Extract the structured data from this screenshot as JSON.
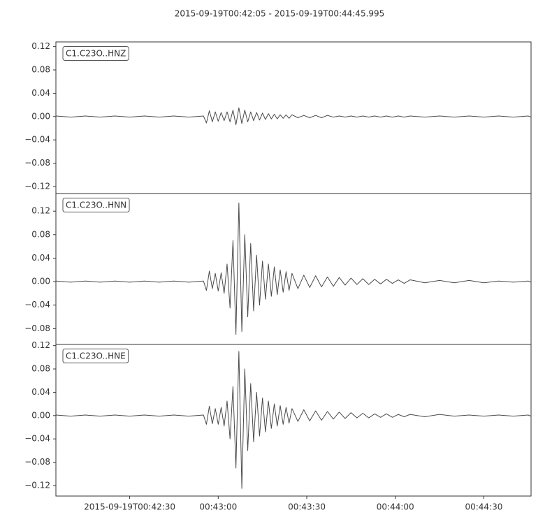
{
  "chart_data": [
    {
      "type": "line",
      "title": "2015-09-19T00:42:05  -  2015-09-19T00:44:45.995",
      "x": [
        0,
        5,
        10,
        15,
        20,
        25,
        30,
        35,
        40,
        45,
        50,
        51,
        52,
        53,
        54,
        55,
        56,
        57,
        58,
        59,
        60,
        61,
        62,
        63,
        64,
        65,
        66,
        67,
        68,
        69,
        70,
        71,
        72,
        73,
        74,
        75,
        76,
        77,
        78,
        79,
        80,
        82,
        84,
        86,
        88,
        90,
        92,
        94,
        96,
        98,
        100,
        102,
        104,
        106,
        108,
        110,
        112,
        114,
        116,
        118,
        120,
        125,
        130,
        135,
        140,
        145,
        150,
        155,
        160,
        160.995
      ],
      "series": [
        {
          "name": "C1.C23O..HNZ",
          "color": "#4a4a4a",
          "values": [
            0.001,
            -0.001,
            0.001,
            -0.001,
            0.001,
            -0.001,
            0.001,
            -0.001,
            0.001,
            -0.001,
            0.001,
            -0.011,
            0.01,
            -0.009,
            0.008,
            -0.008,
            0.007,
            -0.007,
            0.008,
            -0.009,
            0.011,
            -0.014,
            0.015,
            -0.012,
            0.011,
            -0.009,
            0.008,
            -0.007,
            0.007,
            -0.006,
            0.006,
            -0.005,
            0.005,
            -0.004,
            0.004,
            -0.004,
            0.003,
            -0.003,
            0.003,
            -0.003,
            0.003,
            -0.002,
            0.002,
            -0.002,
            0.002,
            -0.002,
            0.002,
            -0.001,
            0.001,
            -0.001,
            0.001,
            -0.001,
            0.001,
            -0.001,
            0.001,
            -0.001,
            0.001,
            -0.001,
            0.001,
            -0.001,
            0.001,
            -0.001,
            0.001,
            -0.001,
            0.001,
            -0.001,
            0.001,
            -0.001,
            0.001,
            -0.001
          ]
        }
      ],
      "xlim": [
        0,
        160.995
      ],
      "ylim": [
        -0.132,
        0.128
      ],
      "yticks": [
        0.12,
        0.08,
        0.04,
        {
          "value": 0,
          "label": "0.00"
        },
        {
          "value": -0.04,
          "label": "−0.04"
        },
        {
          "value": -0.08,
          "label": "−0.08"
        },
        {
          "value": -0.12,
          "label": "−0.12"
        }
      ]
    },
    {
      "type": "line",
      "x": [
        0,
        5,
        10,
        15,
        20,
        25,
        30,
        35,
        40,
        45,
        50,
        51,
        52,
        53,
        54,
        55,
        56,
        57,
        58,
        59,
        60,
        61,
        62,
        63,
        64,
        65,
        66,
        67,
        68,
        69,
        70,
        71,
        72,
        73,
        74,
        75,
        76,
        77,
        78,
        79,
        80,
        82,
        84,
        86,
        88,
        90,
        92,
        94,
        96,
        98,
        100,
        102,
        104,
        106,
        108,
        110,
        112,
        114,
        116,
        118,
        120,
        125,
        130,
        135,
        140,
        145,
        150,
        155,
        160,
        160.995
      ],
      "series": [
        {
          "name": "C1.C23O..HNN",
          "color": "#4a4a4a",
          "values": [
            0.001,
            -0.001,
            0.001,
            -0.001,
            0.001,
            -0.001,
            0.001,
            -0.001,
            0.001,
            -0.001,
            0.001,
            -0.015,
            0.018,
            -0.012,
            0.014,
            -0.016,
            0.015,
            -0.02,
            0.03,
            -0.045,
            0.07,
            -0.09,
            0.134,
            -0.085,
            0.08,
            -0.06,
            0.065,
            -0.05,
            0.045,
            -0.04,
            0.035,
            -0.03,
            0.03,
            -0.025,
            0.025,
            -0.022,
            0.02,
            -0.018,
            0.017,
            -0.015,
            0.014,
            -0.012,
            0.011,
            -0.01,
            0.01,
            -0.009,
            0.008,
            -0.008,
            0.007,
            -0.006,
            0.006,
            -0.005,
            0.005,
            -0.005,
            0.004,
            -0.004,
            0.004,
            -0.003,
            0.003,
            -0.003,
            0.003,
            -0.002,
            0.002,
            -0.002,
            0.002,
            -0.002,
            0.001,
            -0.001,
            0.001,
            -0.001
          ]
        }
      ],
      "xlim": [
        0,
        160.995
      ],
      "ylim": [
        -0.107,
        0.15
      ],
      "yticks": [
        0.12,
        0.08,
        0.04,
        {
          "value": 0,
          "label": "0.00"
        },
        {
          "value": -0.04,
          "label": "−0.04"
        },
        {
          "value": -0.08,
          "label": "−0.08"
        }
      ]
    },
    {
      "type": "line",
      "x": [
        0,
        5,
        10,
        15,
        20,
        25,
        30,
        35,
        40,
        45,
        50,
        51,
        52,
        53,
        54,
        55,
        56,
        57,
        58,
        59,
        60,
        61,
        62,
        63,
        64,
        65,
        66,
        67,
        68,
        69,
        70,
        71,
        72,
        73,
        74,
        75,
        76,
        77,
        78,
        79,
        80,
        82,
        84,
        86,
        88,
        90,
        92,
        94,
        96,
        98,
        100,
        102,
        104,
        106,
        108,
        110,
        112,
        114,
        116,
        118,
        120,
        125,
        130,
        135,
        140,
        145,
        150,
        155,
        160,
        160.995
      ],
      "series": [
        {
          "name": "C1.C23O..HNE",
          "color": "#4a4a4a",
          "values": [
            0.001,
            -0.001,
            0.001,
            -0.001,
            0.001,
            -0.001,
            0.001,
            -0.001,
            0.001,
            -0.001,
            0.001,
            -0.015,
            0.016,
            -0.014,
            0.012,
            -0.015,
            0.014,
            -0.018,
            0.025,
            -0.04,
            0.05,
            -0.09,
            0.11,
            -0.125,
            0.08,
            -0.06,
            0.055,
            -0.045,
            0.04,
            -0.035,
            0.03,
            -0.028,
            0.025,
            -0.022,
            0.02,
            -0.018,
            0.017,
            -0.015,
            0.014,
            -0.013,
            0.012,
            -0.01,
            0.01,
            -0.009,
            0.008,
            -0.008,
            0.007,
            -0.006,
            0.006,
            -0.005,
            0.005,
            -0.004,
            0.004,
            -0.004,
            0.003,
            -0.003,
            0.003,
            -0.003,
            0.002,
            -0.002,
            0.002,
            -0.002,
            0.002,
            -0.001,
            0.001,
            -0.001,
            0.001,
            -0.001,
            0.001,
            -0.001
          ]
        }
      ],
      "xlim": [
        0,
        160.995
      ],
      "ylim": [
        -0.138,
        0.122
      ],
      "yticks": [
        0.12,
        0.08,
        0.04,
        {
          "value": 0,
          "label": "0.00"
        },
        {
          "value": -0.04,
          "label": "−0.04"
        },
        {
          "value": -0.08,
          "label": "−0.08"
        },
        {
          "value": -0.12,
          "label": "−0.12"
        }
      ],
      "xticks": [
        {
          "value": 25,
          "label": "2015-09-19T00:42:30"
        },
        {
          "value": 55,
          "label": "00:43:00"
        },
        {
          "value": 85,
          "label": "00:43:30"
        },
        {
          "value": 115,
          "label": "00:44:00"
        },
        {
          "value": 145,
          "label": "00:44:30"
        }
      ]
    }
  ]
}
